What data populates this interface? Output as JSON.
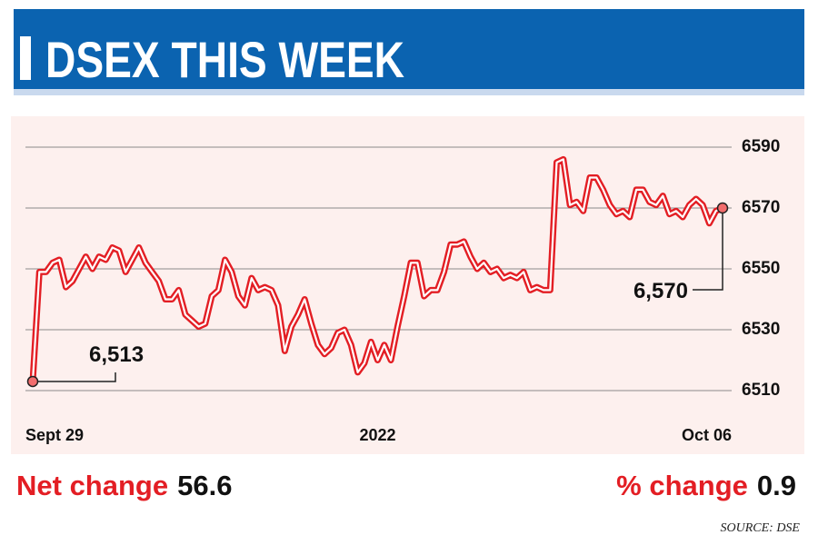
{
  "header": {
    "title": "DSEX THIS WEEK"
  },
  "chart_data": {
    "type": "line",
    "categories": [
      "Sept 29",
      null,
      null,
      null,
      null,
      null,
      null,
      null,
      null,
      null,
      null,
      null,
      null,
      null,
      null,
      null,
      null,
      null,
      null,
      null,
      null,
      null,
      null,
      null,
      null,
      null,
      null,
      null,
      null,
      null,
      null,
      null,
      null,
      null,
      null,
      null,
      null,
      null,
      null,
      null,
      null,
      null,
      null,
      null,
      null,
      null,
      null,
      null,
      null,
      null,
      null,
      null,
      "2022",
      null,
      null,
      null,
      null,
      null,
      null,
      null,
      null,
      null,
      null,
      null,
      null,
      null,
      null,
      null,
      null,
      null,
      null,
      null,
      null,
      null,
      null,
      null,
      null,
      null,
      null,
      null,
      null,
      null,
      null,
      null,
      null,
      null,
      null,
      null,
      null,
      null,
      null,
      null,
      null,
      null,
      null,
      null,
      null,
      null,
      null,
      null,
      null,
      null,
      null,
      null,
      "Oct 06"
    ],
    "series": [
      {
        "color": "#e31e24",
        "values": [
          6513,
          6549,
          6549,
          6552,
          6553,
          6544,
          6546,
          6550,
          6554,
          6550,
          6554,
          6553,
          6557,
          6556,
          6549,
          6553,
          6557,
          6552,
          6549,
          6546,
          6540,
          6540,
          6543,
          6535,
          6533,
          6531,
          6532,
          6541,
          6543,
          6553,
          6549,
          6541,
          6538,
          6547,
          6543,
          6544,
          6543,
          6538,
          6523,
          6531,
          6535,
          6540,
          6532,
          6525,
          6522,
          6524,
          6529,
          6530,
          6525,
          6516,
          6519,
          6526,
          6520,
          6525,
          6520,
          6531,
          6541,
          6552,
          6552,
          6541,
          6543,
          6543,
          6549,
          6558,
          6558,
          6559,
          6554,
          6550,
          6552,
          6549,
          6550,
          6547,
          6548,
          6547,
          6549,
          6543,
          6544,
          6543,
          6543,
          6585,
          6586,
          6571,
          6572,
          6569,
          6580,
          6580,
          6576,
          6571,
          6568,
          6569,
          6567,
          6576,
          6576,
          6572,
          6571,
          6574,
          6568,
          6569,
          6567,
          6571,
          6573,
          6571,
          6565,
          6569,
          6570
        ],
        "value_labels": [
          "6,513",
          null,
          null,
          null,
          null,
          null,
          null,
          null,
          null,
          null,
          null,
          null,
          null,
          null,
          null,
          null,
          null,
          null,
          null,
          null,
          null,
          null,
          null,
          null,
          null,
          null,
          null,
          null,
          null,
          null,
          null,
          null,
          null,
          null,
          null,
          null,
          null,
          null,
          null,
          null,
          null,
          null,
          null,
          null,
          null,
          null,
          null,
          null,
          null,
          null,
          null,
          null,
          null,
          null,
          null,
          null,
          null,
          null,
          null,
          null,
          null,
          null,
          null,
          null,
          null,
          null,
          null,
          null,
          null,
          null,
          null,
          null,
          null,
          null,
          null,
          null,
          null,
          null,
          null,
          null,
          null,
          null,
          null,
          null,
          null,
          null,
          null,
          null,
          null,
          null,
          null,
          null,
          null,
          null,
          null,
          null,
          null,
          null,
          null,
          null,
          null,
          null,
          null,
          null,
          "6,570"
        ]
      }
    ],
    "ylim": [
      6506,
      6594
    ],
    "yticks": [
      6510,
      6530,
      6550,
      6570,
      6590
    ],
    "grid": true
  },
  "summary": {
    "net_change_label": "Net change",
    "net_change": 56.6,
    "pct_change_label": "% change",
    "pct_change": 0.9
  },
  "source": "SOURCE: DSE"
}
